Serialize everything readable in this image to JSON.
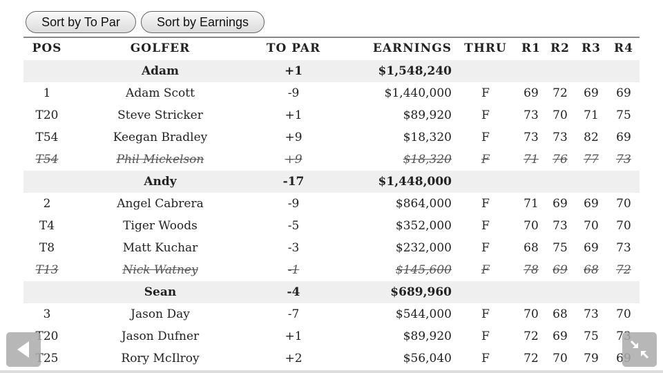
{
  "buttons": {
    "sort_to_par": "Sort by To Par",
    "sort_earnings": "Sort by Earnings"
  },
  "columns": [
    "POS",
    "GOLFER",
    "TO PAR",
    "EARNINGS",
    "THRU",
    "R1",
    "R2",
    "R3",
    "R4"
  ],
  "rows": [
    {
      "type": "group",
      "golfer": "Adam",
      "to_par": "+1",
      "earnings": "$1,548,240"
    },
    {
      "type": "player",
      "pos": "1",
      "golfer": "Adam Scott",
      "to_par": "-9",
      "earnings": "$1,440,000",
      "thru": "F",
      "r": [
        "69",
        "72",
        "69",
        "69"
      ]
    },
    {
      "type": "player",
      "pos": "T20",
      "golfer": "Steve Stricker",
      "to_par": "+1",
      "earnings": "$89,920",
      "thru": "F",
      "r": [
        "73",
        "70",
        "71",
        "75"
      ]
    },
    {
      "type": "player",
      "pos": "T54",
      "golfer": "Keegan Bradley",
      "to_par": "+9",
      "earnings": "$18,320",
      "thru": "F",
      "r": [
        "73",
        "73",
        "82",
        "69"
      ]
    },
    {
      "type": "dropped",
      "pos": "T54",
      "golfer": "Phil Mickelson",
      "to_par": "+9",
      "earnings": "$18,320",
      "thru": "F",
      "r": [
        "71",
        "76",
        "77",
        "73"
      ]
    },
    {
      "type": "group",
      "golfer": "Andy",
      "to_par": "-17",
      "earnings": "$1,448,000"
    },
    {
      "type": "player",
      "pos": "2",
      "golfer": "Angel Cabrera",
      "to_par": "-9",
      "earnings": "$864,000",
      "thru": "F",
      "r": [
        "71",
        "69",
        "69",
        "70"
      ]
    },
    {
      "type": "player",
      "pos": "T4",
      "golfer": "Tiger Woods",
      "to_par": "-5",
      "earnings": "$352,000",
      "thru": "F",
      "r": [
        "70",
        "73",
        "70",
        "70"
      ]
    },
    {
      "type": "player",
      "pos": "T8",
      "golfer": "Matt Kuchar",
      "to_par": "-3",
      "earnings": "$232,000",
      "thru": "F",
      "r": [
        "68",
        "75",
        "69",
        "73"
      ]
    },
    {
      "type": "dropped",
      "pos": "T13",
      "golfer": "Nick Watney",
      "to_par": "-1",
      "earnings": "$145,600",
      "thru": "F",
      "r": [
        "78",
        "69",
        "68",
        "72"
      ]
    },
    {
      "type": "group",
      "golfer": "Sean",
      "to_par": "-4",
      "earnings": "$689,960"
    },
    {
      "type": "player",
      "pos": "3",
      "golfer": "Jason Day",
      "to_par": "-7",
      "earnings": "$544,000",
      "thru": "F",
      "r": [
        "70",
        "68",
        "73",
        "70"
      ]
    },
    {
      "type": "player",
      "pos": "T20",
      "golfer": "Jason Dufner",
      "to_par": "+1",
      "earnings": "$89,920",
      "thru": "F",
      "r": [
        "72",
        "69",
        "75",
        "73"
      ]
    },
    {
      "type": "player",
      "pos": "T25",
      "golfer": "Rory McIlroy",
      "to_par": "+2",
      "earnings": "$56,040",
      "thru": "F",
      "r": [
        "72",
        "70",
        "79",
        "69"
      ]
    }
  ],
  "icons": {
    "back": "back-arrow-icon",
    "collapse": "collapse-icon"
  }
}
